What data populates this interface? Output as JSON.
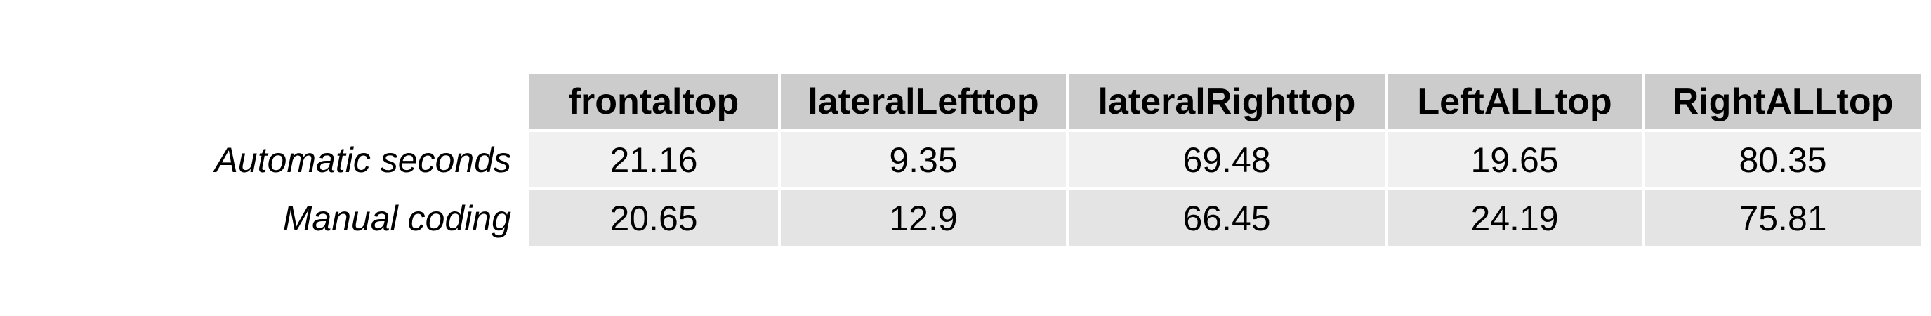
{
  "chart_data": {
    "type": "table",
    "columns": [
      "frontaltop",
      "lateralLefttop",
      "lateralRighttop",
      "LeftALLtop",
      "RightALLtop"
    ],
    "rows": [
      {
        "label": "Automatic seconds",
        "values": [
          "21.16",
          "9.35",
          "69.48",
          "19.65",
          "80.35"
        ]
      },
      {
        "label": "Manual coding",
        "values": [
          "20.65",
          "12.9",
          "66.45",
          "24.19",
          "75.81"
        ]
      }
    ],
    "colors": {
      "header_bg": "#cccccc",
      "row_odd_bg": "#f0f0f0",
      "row_even_bg": "#e4e4e4"
    }
  }
}
